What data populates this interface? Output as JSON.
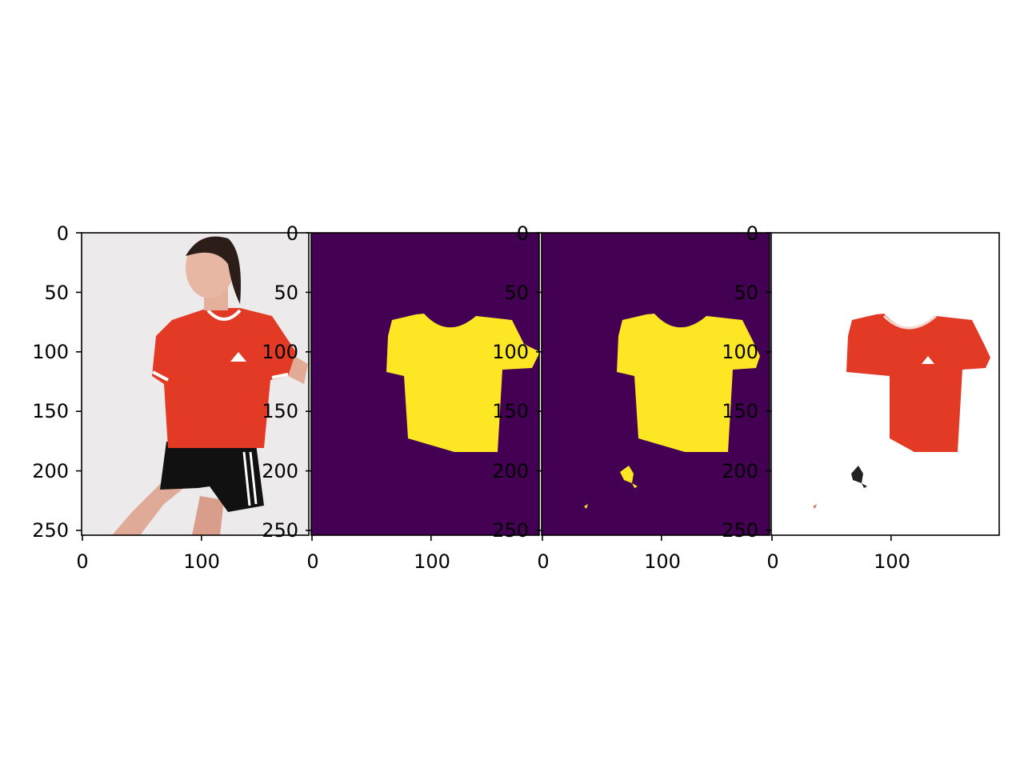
{
  "chart_data": [
    {
      "type": "image",
      "content": "photo of woman in red adidas t-shirt and black shorts",
      "xlim": [
        0,
        190
      ],
      "ylim": [
        255,
        0
      ],
      "xticks": [
        "0",
        "100"
      ],
      "yticks": [
        "0",
        "50",
        "100",
        "150",
        "200",
        "250"
      ]
    },
    {
      "type": "image",
      "content": "predicted mask: yellow shirt region on purple background",
      "colors": {
        "background": "#440154",
        "foreground": "#fde725"
      },
      "xlim": [
        0,
        190
      ],
      "ylim": [
        255,
        0
      ],
      "xticks": [
        "0",
        "100"
      ],
      "yticks": [
        "0",
        "50",
        "100",
        "150",
        "200",
        "250"
      ]
    },
    {
      "type": "image",
      "content": "mask with shirt region plus small spurious blobs",
      "colors": {
        "background": "#440154",
        "foreground": "#fde725"
      },
      "xlim": [
        0,
        190
      ],
      "ylim": [
        255,
        0
      ],
      "xticks": [
        "0",
        "100"
      ],
      "yticks": [
        "0",
        "50",
        "100",
        "150",
        "200",
        "250"
      ]
    },
    {
      "type": "image",
      "content": "masked photo showing only the red shirt on white",
      "colors": {
        "shirt": "#e23a24",
        "background": "#ffffff"
      },
      "xlim": [
        0,
        190
      ],
      "ylim": [
        255,
        0
      ],
      "xticks": [
        "0",
        "100"
      ],
      "yticks": [
        "0",
        "50",
        "100",
        "150",
        "200",
        "250"
      ]
    }
  ]
}
